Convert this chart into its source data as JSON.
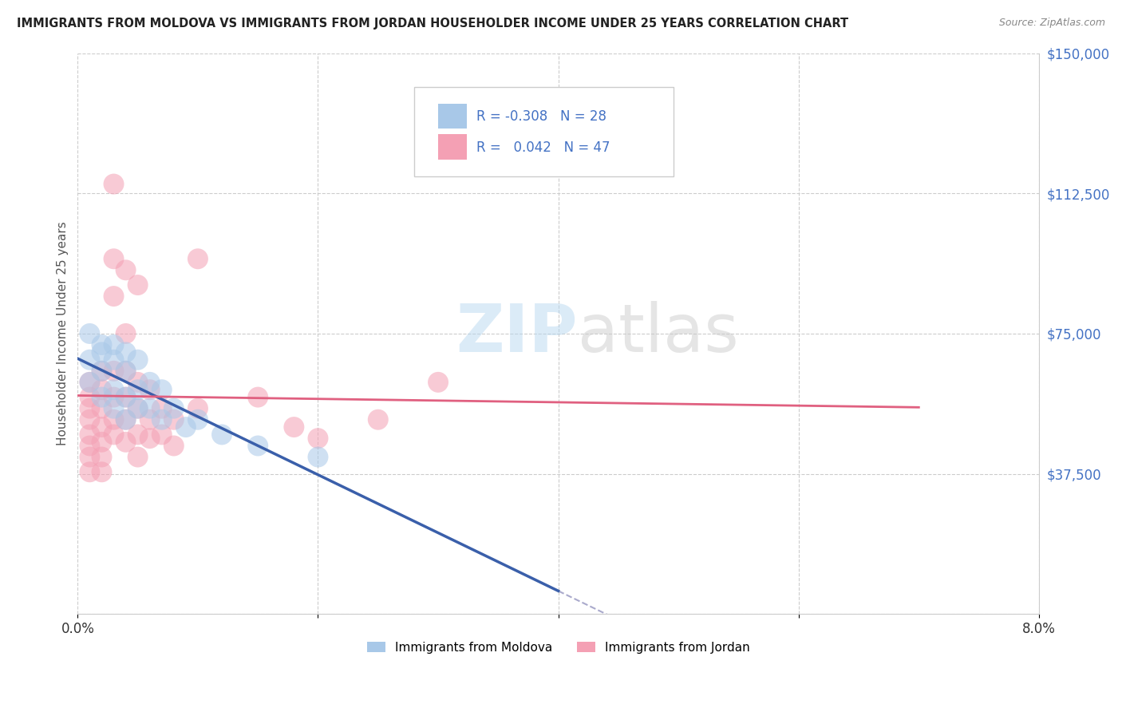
{
  "title": "IMMIGRANTS FROM MOLDOVA VS IMMIGRANTS FROM JORDAN HOUSEHOLDER INCOME UNDER 25 YEARS CORRELATION CHART",
  "source": "Source: ZipAtlas.com",
  "ylabel": "Householder Income Under 25 years",
  "xmin": 0.0,
  "xmax": 0.08,
  "ymin": 0,
  "ymax": 150000,
  "yticks": [
    0,
    37500,
    75000,
    112500,
    150000
  ],
  "ytick_labels": [
    "",
    "$37,500",
    "$75,000",
    "$112,500",
    "$150,000"
  ],
  "xticks": [
    0.0,
    0.02,
    0.04,
    0.06,
    0.08
  ],
  "xtick_labels": [
    "0.0%",
    "",
    "",
    "",
    "8.0%"
  ],
  "legend_moldova": "Immigrants from Moldova",
  "legend_jordan": "Immigrants from Jordan",
  "R_moldova": -0.308,
  "N_moldova": 28,
  "R_jordan": 0.042,
  "N_jordan": 47,
  "color_moldova": "#a8c8e8",
  "color_moldova_line": "#3a5faa",
  "color_jordan": "#f4a0b4",
  "color_jordan_line": "#e06080",
  "color_blue_text": "#4472c4",
  "moldova_points": [
    [
      0.001,
      75000
    ],
    [
      0.001,
      68000
    ],
    [
      0.001,
      62000
    ],
    [
      0.002,
      72000
    ],
    [
      0.002,
      65000
    ],
    [
      0.002,
      58000
    ],
    [
      0.002,
      70000
    ],
    [
      0.003,
      68000
    ],
    [
      0.003,
      60000
    ],
    [
      0.003,
      55000
    ],
    [
      0.003,
      72000
    ],
    [
      0.004,
      65000
    ],
    [
      0.004,
      58000
    ],
    [
      0.004,
      52000
    ],
    [
      0.004,
      70000
    ],
    [
      0.005,
      68000
    ],
    [
      0.005,
      60000
    ],
    [
      0.005,
      55000
    ],
    [
      0.006,
      62000
    ],
    [
      0.006,
      55000
    ],
    [
      0.007,
      60000
    ],
    [
      0.007,
      52000
    ],
    [
      0.008,
      55000
    ],
    [
      0.009,
      50000
    ],
    [
      0.01,
      52000
    ],
    [
      0.012,
      48000
    ],
    [
      0.015,
      45000
    ],
    [
      0.02,
      42000
    ]
  ],
  "jordan_points": [
    [
      0.001,
      62000
    ],
    [
      0.001,
      58000
    ],
    [
      0.001,
      55000
    ],
    [
      0.001,
      52000
    ],
    [
      0.001,
      48000
    ],
    [
      0.001,
      45000
    ],
    [
      0.001,
      42000
    ],
    [
      0.001,
      38000
    ],
    [
      0.002,
      65000
    ],
    [
      0.002,
      60000
    ],
    [
      0.002,
      55000
    ],
    [
      0.002,
      50000
    ],
    [
      0.002,
      46000
    ],
    [
      0.002,
      42000
    ],
    [
      0.002,
      38000
    ],
    [
      0.003,
      115000
    ],
    [
      0.003,
      95000
    ],
    [
      0.003,
      85000
    ],
    [
      0.003,
      65000
    ],
    [
      0.003,
      58000
    ],
    [
      0.003,
      52000
    ],
    [
      0.003,
      48000
    ],
    [
      0.004,
      92000
    ],
    [
      0.004,
      75000
    ],
    [
      0.004,
      65000
    ],
    [
      0.004,
      58000
    ],
    [
      0.004,
      52000
    ],
    [
      0.004,
      46000
    ],
    [
      0.005,
      88000
    ],
    [
      0.005,
      62000
    ],
    [
      0.005,
      55000
    ],
    [
      0.005,
      48000
    ],
    [
      0.005,
      42000
    ],
    [
      0.006,
      60000
    ],
    [
      0.006,
      52000
    ],
    [
      0.006,
      47000
    ],
    [
      0.007,
      55000
    ],
    [
      0.007,
      48000
    ],
    [
      0.008,
      52000
    ],
    [
      0.008,
      45000
    ],
    [
      0.01,
      95000
    ],
    [
      0.01,
      55000
    ],
    [
      0.015,
      58000
    ],
    [
      0.018,
      50000
    ],
    [
      0.02,
      47000
    ],
    [
      0.025,
      52000
    ],
    [
      0.03,
      62000
    ]
  ]
}
